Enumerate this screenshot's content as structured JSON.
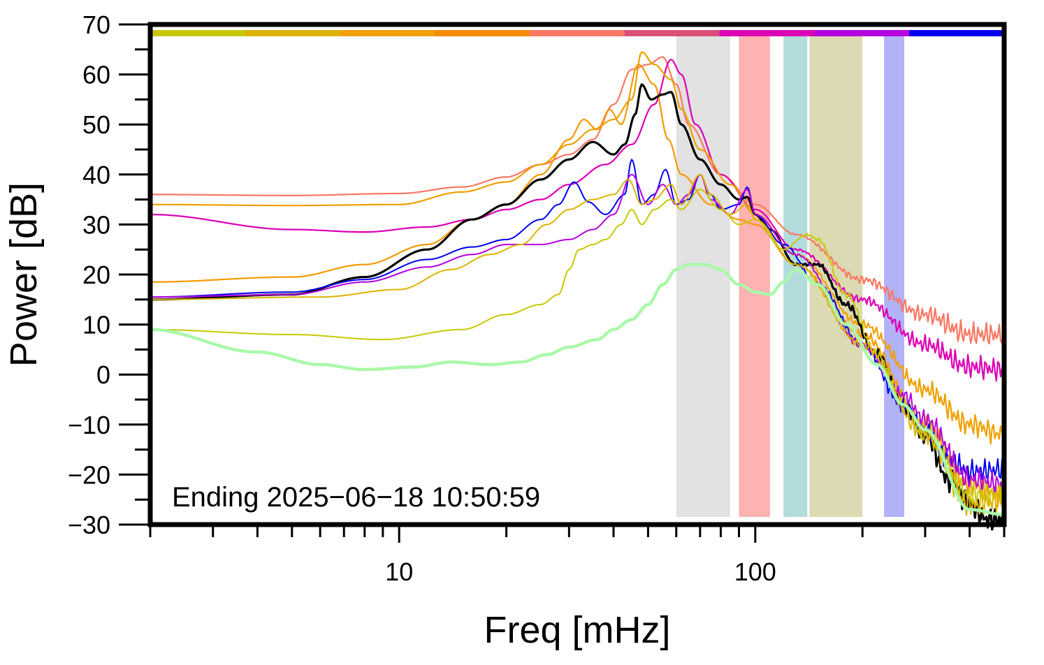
{
  "chart_data": {
    "type": "line",
    "xscale": "log",
    "xlabel": "Freq [mHz]",
    "ylabel": "Power [dB]",
    "xlim": [
      2,
      500
    ],
    "ylim": [
      -30,
      70
    ],
    "xticks_labeled": [
      {
        "value": 10,
        "label": "10"
      },
      {
        "value": 100,
        "label": "100"
      }
    ],
    "yticks": [
      {
        "value": 70,
        "label": "70"
      },
      {
        "value": 60,
        "label": "60"
      },
      {
        "value": 50,
        "label": "50"
      },
      {
        "value": 40,
        "label": "40"
      },
      {
        "value": 30,
        "label": "30"
      },
      {
        "value": 20,
        "label": "20"
      },
      {
        "value": 10,
        "label": "10"
      },
      {
        "value": 0,
        "label": "0"
      },
      {
        "value": -10,
        "label": "−10"
      },
      {
        "value": -20,
        "label": "−20"
      },
      {
        "value": -30,
        "label": "−30"
      }
    ],
    "annotation": "Ending 2025−06−18 10:50:59",
    "bands": [
      {
        "from": 60,
        "to": 85,
        "color": "#e2e2e2"
      },
      {
        "from": 90,
        "to": 110,
        "color": "#ffb2b2"
      },
      {
        "from": 120,
        "to": 140,
        "color": "#b2dcdc"
      },
      {
        "from": 142,
        "to": 200,
        "color": "#dcdab2"
      },
      {
        "from": 230,
        "to": 262,
        "color": "#b2b2f8"
      }
    ],
    "color_bar": [
      "#c8c800",
      "#dcb400",
      "#f0a000",
      "#f88c00",
      "#fa7864",
      "#dc5078",
      "#dc00b4",
      "#b400dc",
      "#0000f0"
    ],
    "series": [
      {
        "name": "coral",
        "color": "#fa7864",
        "width": 2.2,
        "points": [
          [
            2,
            36
          ],
          [
            5,
            35.8
          ],
          [
            10,
            36.2
          ],
          [
            15,
            37.5
          ],
          [
            20,
            39.5
          ],
          [
            25,
            42
          ],
          [
            30,
            44
          ],
          [
            35,
            47
          ],
          [
            40,
            54
          ],
          [
            45,
            61
          ],
          [
            50,
            62
          ],
          [
            55,
            63.5
          ],
          [
            60,
            58
          ],
          [
            65,
            50
          ],
          [
            80,
            40
          ],
          [
            100,
            34
          ],
          [
            130,
            28
          ],
          [
            200,
            19
          ],
          [
            300,
            12
          ],
          [
            400,
            8
          ],
          [
            500,
            8
          ]
        ]
      },
      {
        "name": "magenta",
        "color": "#dc00b4",
        "width": 2.2,
        "points": [
          [
            2,
            32
          ],
          [
            5,
            29
          ],
          [
            8,
            28.5
          ],
          [
            12,
            29.5
          ],
          [
            16,
            31
          ],
          [
            20,
            33
          ],
          [
            25,
            35
          ],
          [
            30,
            38
          ],
          [
            38,
            42
          ],
          [
            45,
            46
          ],
          [
            52,
            54
          ],
          [
            58,
            63
          ],
          [
            62,
            60
          ],
          [
            68,
            50
          ],
          [
            80,
            40
          ],
          [
            100,
            33
          ],
          [
            130,
            25
          ],
          [
            200,
            15
          ],
          [
            300,
            6
          ],
          [
            400,
            1.5
          ],
          [
            500,
            1
          ]
        ]
      },
      {
        "name": "orange-a",
        "color": "#f0a000",
        "width": 2.2,
        "points": [
          [
            2,
            34
          ],
          [
            5,
            33.8
          ],
          [
            10,
            34
          ],
          [
            15,
            36.5
          ],
          [
            20,
            38.5
          ],
          [
            25,
            42
          ],
          [
            30,
            46
          ],
          [
            35,
            49
          ],
          [
            40,
            51
          ],
          [
            45,
            55
          ],
          [
            48,
            64.5
          ],
          [
            52,
            62
          ],
          [
            58,
            59
          ],
          [
            62,
            53
          ],
          [
            70,
            45
          ],
          [
            85,
            38
          ],
          [
            100,
            32
          ],
          [
            130,
            24
          ],
          [
            200,
            10
          ],
          [
            300,
            -3
          ],
          [
            400,
            -10
          ],
          [
            500,
            -12
          ]
        ]
      },
      {
        "name": "orange-b",
        "color": "#f89800",
        "width": 2.2,
        "points": [
          [
            2,
            18.5
          ],
          [
            5,
            19.5
          ],
          [
            8,
            22
          ],
          [
            12,
            26
          ],
          [
            16,
            31
          ],
          [
            20,
            34
          ],
          [
            25,
            40
          ],
          [
            30,
            47
          ],
          [
            33,
            51
          ],
          [
            36,
            49
          ],
          [
            39,
            53
          ],
          [
            42,
            50
          ],
          [
            47,
            62
          ],
          [
            52,
            58
          ],
          [
            57,
            47
          ],
          [
            62,
            40
          ],
          [
            75,
            34
          ],
          [
            90,
            31
          ],
          [
            100,
            30
          ],
          [
            130,
            22
          ],
          [
            200,
            8
          ],
          [
            300,
            -10
          ],
          [
            400,
            -22
          ],
          [
            500,
            -24
          ]
        ]
      },
      {
        "name": "black",
        "color": "#000000",
        "width": 3.2,
        "points": [
          [
            2,
            15
          ],
          [
            5,
            16
          ],
          [
            8,
            19.5
          ],
          [
            12,
            25
          ],
          [
            16,
            31
          ],
          [
            20,
            34
          ],
          [
            25,
            39
          ],
          [
            30,
            43
          ],
          [
            35,
            46.5
          ],
          [
            40,
            44
          ],
          [
            43,
            46
          ],
          [
            46,
            52
          ],
          [
            48,
            58
          ],
          [
            51,
            55
          ],
          [
            55,
            56
          ],
          [
            58,
            56.5
          ],
          [
            62,
            50
          ],
          [
            70,
            43
          ],
          [
            80,
            38
          ],
          [
            90,
            35
          ],
          [
            95,
            35.5
          ],
          [
            100,
            32
          ],
          [
            110,
            29
          ],
          [
            130,
            22
          ],
          [
            150,
            22
          ],
          [
            180,
            14
          ],
          [
            220,
            4
          ],
          [
            260,
            -6
          ],
          [
            300,
            -12
          ],
          [
            350,
            -21
          ],
          [
            400,
            -26
          ],
          [
            450,
            -29
          ],
          [
            500,
            -29
          ]
        ]
      },
      {
        "name": "blue",
        "color": "#0000f0",
        "width": 2,
        "points": [
          [
            2,
            15.5
          ],
          [
            5,
            16.5
          ],
          [
            8,
            19
          ],
          [
            12,
            23
          ],
          [
            16,
            25.5
          ],
          [
            20,
            27
          ],
          [
            25,
            31
          ],
          [
            28,
            34
          ],
          [
            31,
            38.5
          ],
          [
            34,
            34.5
          ],
          [
            38,
            32
          ],
          [
            43,
            36
          ],
          [
            45,
            43
          ],
          [
            48,
            34
          ],
          [
            52,
            36
          ],
          [
            56,
            41
          ],
          [
            60,
            34
          ],
          [
            65,
            35
          ],
          [
            70,
            40
          ],
          [
            75,
            36
          ],
          [
            80,
            33
          ],
          [
            90,
            34
          ],
          [
            95,
            37.5
          ],
          [
            100,
            32
          ],
          [
            120,
            26
          ],
          [
            150,
            18
          ],
          [
            200,
            6
          ],
          [
            260,
            -6
          ],
          [
            300,
            -11
          ],
          [
            350,
            -17
          ],
          [
            400,
            -19.5
          ],
          [
            500,
            -19
          ]
        ]
      },
      {
        "name": "purple",
        "color": "#b400dc",
        "width": 2,
        "points": [
          [
            2,
            15.5
          ],
          [
            5,
            16
          ],
          [
            8,
            18.5
          ],
          [
            12,
            21.5
          ],
          [
            16,
            24
          ],
          [
            20,
            26
          ],
          [
            25,
            26
          ],
          [
            30,
            27
          ],
          [
            35,
            29
          ],
          [
            40,
            32
          ],
          [
            45,
            40
          ],
          [
            50,
            34
          ],
          [
            55,
            38
          ],
          [
            60,
            34
          ],
          [
            65,
            36
          ],
          [
            70,
            40
          ],
          [
            75,
            35
          ],
          [
            85,
            32
          ],
          [
            95,
            37
          ],
          [
            100,
            32
          ],
          [
            130,
            24
          ],
          [
            200,
            6
          ],
          [
            260,
            -4
          ],
          [
            300,
            -9
          ],
          [
            400,
            -21
          ],
          [
            500,
            -22
          ]
        ]
      },
      {
        "name": "yellow",
        "color": "#c8c800",
        "width": 2,
        "points": [
          [
            2,
            9
          ],
          [
            5,
            8
          ],
          [
            9,
            7
          ],
          [
            15,
            9
          ],
          [
            20,
            12
          ],
          [
            25,
            14
          ],
          [
            28,
            16
          ],
          [
            30,
            21
          ],
          [
            32,
            25
          ],
          [
            35,
            26
          ],
          [
            38,
            27
          ],
          [
            42,
            30
          ],
          [
            45,
            33
          ],
          [
            48,
            30
          ],
          [
            52,
            33
          ],
          [
            58,
            35
          ],
          [
            62,
            33
          ],
          [
            70,
            37
          ],
          [
            80,
            33
          ],
          [
            90,
            30
          ],
          [
            100,
            31
          ],
          [
            120,
            25
          ],
          [
            140,
            28
          ],
          [
            150,
            27
          ],
          [
            180,
            16
          ],
          [
            220,
            4
          ],
          [
            260,
            -6
          ],
          [
            300,
            -12
          ],
          [
            400,
            -24
          ],
          [
            500,
            -24
          ]
        ]
      },
      {
        "name": "gold",
        "color": "#dcb400",
        "width": 2,
        "points": [
          [
            2,
            15
          ],
          [
            6,
            15.5
          ],
          [
            10,
            17
          ],
          [
            14,
            21
          ],
          [
            18,
            24
          ],
          [
            22,
            26
          ],
          [
            26,
            30
          ],
          [
            30,
            33
          ],
          [
            35,
            35
          ],
          [
            40,
            36
          ],
          [
            44,
            39
          ],
          [
            48,
            34
          ],
          [
            52,
            35
          ],
          [
            58,
            38
          ],
          [
            62,
            34
          ],
          [
            70,
            40
          ],
          [
            75,
            36
          ],
          [
            85,
            32
          ],
          [
            95,
            34
          ],
          [
            100,
            31
          ],
          [
            130,
            22
          ],
          [
            200,
            6
          ],
          [
            300,
            -12
          ],
          [
            400,
            -26
          ],
          [
            500,
            -25
          ]
        ]
      },
      {
        "name": "light-green",
        "color": "#aaf8aa",
        "width": 4.5,
        "points": [
          [
            2,
            9
          ],
          [
            4,
            4.5
          ],
          [
            6,
            2
          ],
          [
            8,
            1
          ],
          [
            11,
            1.5
          ],
          [
            14,
            2.5
          ],
          [
            18,
            2
          ],
          [
            22,
            2.5
          ],
          [
            26,
            4
          ],
          [
            30,
            5.5
          ],
          [
            36,
            7
          ],
          [
            40,
            9
          ],
          [
            45,
            11
          ],
          [
            50,
            14
          ],
          [
            55,
            18
          ],
          [
            60,
            21
          ],
          [
            65,
            22
          ],
          [
            72,
            22
          ],
          [
            80,
            21
          ],
          [
            90,
            18
          ],
          [
            100,
            16.5
          ],
          [
            110,
            16
          ],
          [
            120,
            18.5
          ],
          [
            130,
            21
          ],
          [
            150,
            18
          ],
          [
            180,
            10
          ],
          [
            220,
            2
          ],
          [
            260,
            -6
          ],
          [
            300,
            -11
          ],
          [
            400,
            -27
          ],
          [
            500,
            -28
          ]
        ]
      }
    ]
  }
}
